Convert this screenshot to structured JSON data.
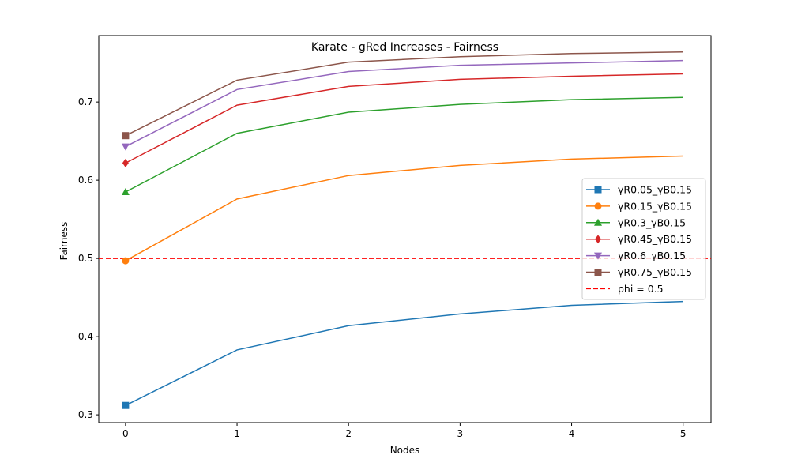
{
  "chart_data": {
    "type": "line",
    "title": "Karate - gRed Increases - Fairness",
    "xlabel": "Nodes",
    "ylabel": "Fairness",
    "x": [
      0,
      1,
      2,
      3,
      4,
      5
    ],
    "xlim": [
      -0.24,
      5.25
    ],
    "ylim": [
      0.29,
      0.785
    ],
    "xticks": [
      "0",
      "1",
      "2",
      "3",
      "4",
      "5"
    ],
    "yticks": [
      0.3,
      0.4,
      0.5,
      0.6,
      0.7
    ],
    "ytick_labels": [
      "0.3",
      "0.4",
      "0.5",
      "0.6",
      "0.7"
    ],
    "grid": false,
    "legend_position": "center-right",
    "series": [
      {
        "name": "γR0.05_γB0.15",
        "color": "#1f77b4",
        "marker": "square",
        "values": [
          0.312,
          0.383,
          0.414,
          0.429,
          0.44,
          0.445
        ]
      },
      {
        "name": "γR0.15_γB0.15",
        "color": "#ff7f0e",
        "marker": "circle",
        "values": [
          0.497,
          0.576,
          0.606,
          0.619,
          0.627,
          0.631
        ]
      },
      {
        "name": "γR0.3_γB0.15",
        "color": "#2ca02c",
        "marker": "triangle-up",
        "values": [
          0.585,
          0.66,
          0.687,
          0.697,
          0.703,
          0.706
        ]
      },
      {
        "name": "γR0.45_γB0.15",
        "color": "#d62728",
        "marker": "diamond",
        "values": [
          0.622,
          0.696,
          0.72,
          0.729,
          0.733,
          0.736
        ]
      },
      {
        "name": "γR0.6_γB0.15",
        "color": "#9467bd",
        "marker": "triangle-down",
        "values": [
          0.643,
          0.716,
          0.739,
          0.747,
          0.75,
          0.753
        ]
      },
      {
        "name": "γR0.75_γB0.15",
        "color": "#8c564b",
        "marker": "square",
        "values": [
          0.657,
          0.728,
          0.751,
          0.758,
          0.762,
          0.764
        ]
      }
    ],
    "reference_line": {
      "name": "phi = 0.5",
      "y": 0.5,
      "color": "#ff0000",
      "style": "dashed"
    }
  }
}
